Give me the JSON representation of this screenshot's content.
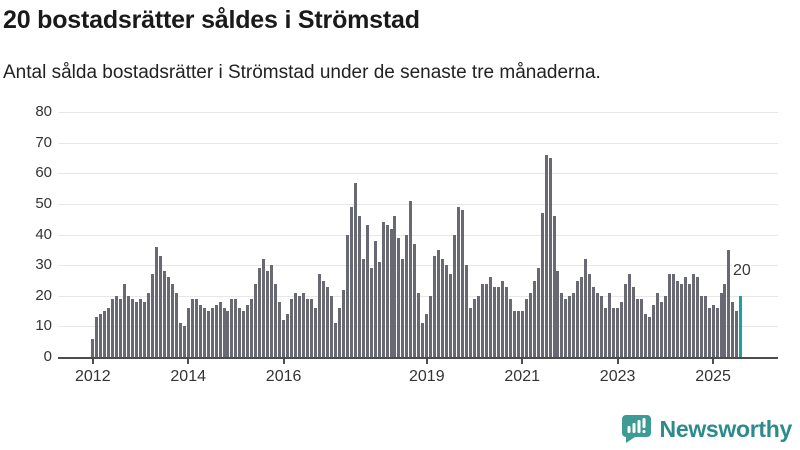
{
  "header": {
    "title": "20 bostadsrätter såldes i Strömstad",
    "subtitle": "Antal sålda bostadsrätter i Strömstad under de senaste tre månaderna."
  },
  "annotation": {
    "latest_label": "20"
  },
  "brand": {
    "name": "Newsworthy",
    "icon": "bar-chart-speech-bubble-icon"
  },
  "colors": {
    "bar": "#696974",
    "highlight": "#18a39e",
    "gridline": "#e7e7e7",
    "axis": "#4d4d4d",
    "tick_text": "#333333",
    "brand_text": "#2e8b8c",
    "brand_icon": "#3e9b94"
  },
  "chart_data": {
    "type": "bar",
    "title": "20 bostadsrätter såldes i Strömstad",
    "subtitle": "Antal sålda bostadsrätter i Strömstad under de senaste tre månaderna.",
    "xlabel": "",
    "ylabel": "",
    "x_unit": "month",
    "x_start": "2012-01",
    "x_end": "2025-08",
    "ylim": [
      0,
      80
    ],
    "yticks": [
      0,
      10,
      20,
      30,
      40,
      50,
      60,
      70,
      80
    ],
    "xtick_years": [
      "2012",
      "2014",
      "2016",
      "2019",
      "2021",
      "2023",
      "2025"
    ],
    "grid": true,
    "legend": false,
    "highlight_last": true,
    "last_value": 20,
    "series": [
      {
        "name": "Antal sålda bostadsrätter per månad",
        "values_by_year": {
          "2012": [
            6,
            13,
            14,
            15,
            16,
            19,
            20,
            19,
            24,
            20,
            19,
            18
          ],
          "2013": [
            19,
            18,
            21,
            27,
            36,
            33,
            28,
            26,
            24,
            21,
            11,
            10
          ],
          "2014": [
            16,
            19,
            19,
            17,
            16,
            15,
            16,
            17,
            18,
            16,
            15,
            19
          ],
          "2015": [
            19,
            16,
            15,
            17,
            19,
            24,
            29,
            32,
            28,
            30,
            24,
            18
          ],
          "2016": [
            12,
            14,
            19,
            21,
            20,
            21,
            19,
            19,
            16,
            27,
            25,
            23
          ],
          "2017": [
            20,
            11,
            16,
            22,
            40,
            49,
            57,
            46,
            32,
            43,
            29,
            38
          ],
          "2018": [
            31,
            44,
            43,
            42,
            46,
            39,
            32,
            40,
            51,
            37,
            21,
            11
          ],
          "2019": [
            14,
            20,
            33,
            35,
            32,
            30,
            27,
            40,
            49,
            48,
            30,
            16
          ],
          "2020": [
            19,
            20,
            24,
            24,
            26,
            23,
            23,
            25,
            23,
            19,
            15,
            15
          ],
          "2021": [
            15,
            19,
            21,
            25,
            29,
            47,
            66,
            65,
            46,
            28,
            21,
            19
          ],
          "2022": [
            20,
            21,
            25,
            26,
            32,
            27,
            23,
            21,
            20,
            16,
            21,
            16
          ],
          "2023": [
            16,
            18,
            24,
            27,
            23,
            19,
            19,
            14,
            13,
            17,
            21,
            18
          ],
          "2024": [
            20,
            27,
            27,
            25,
            24,
            26,
            24,
            27,
            26,
            20,
            20,
            16
          ],
          "2025": [
            17,
            16,
            21,
            24,
            35,
            18,
            15,
            20
          ]
        }
      }
    ]
  }
}
